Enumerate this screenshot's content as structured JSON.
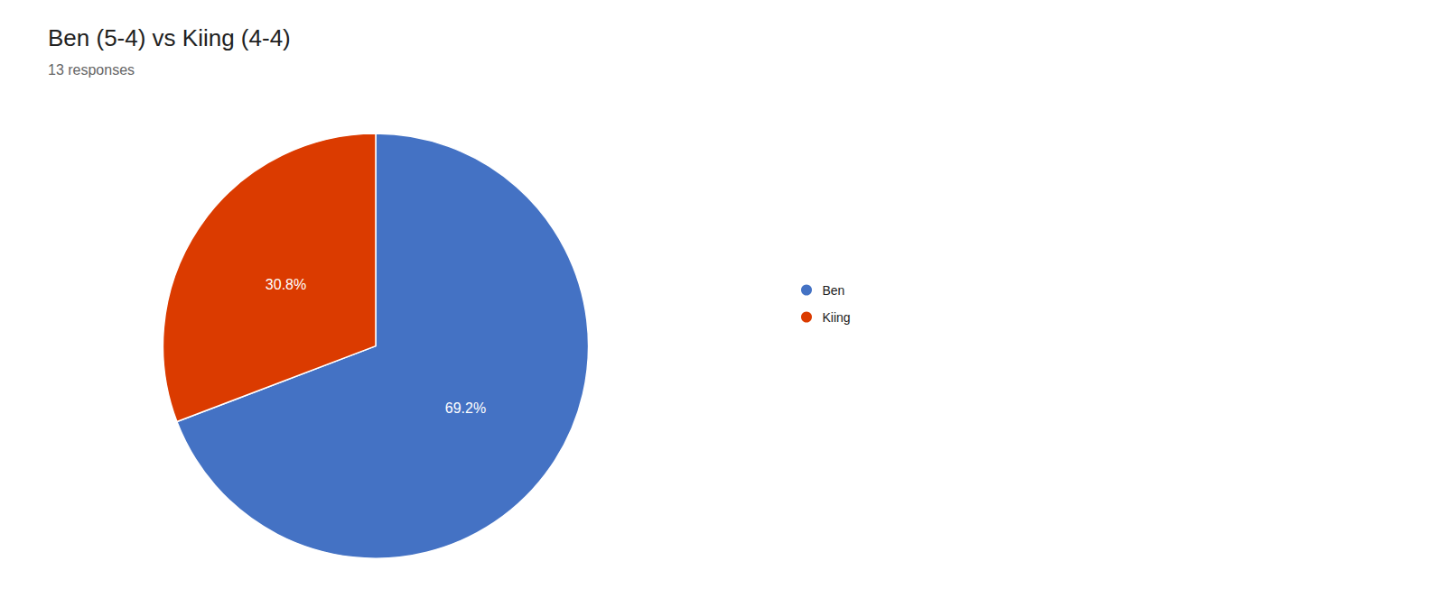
{
  "chart_data": {
    "type": "pie",
    "title": "Ben (5-4) vs Kiing (4-4)",
    "subtitle": "13 responses",
    "categories": [
      "Ben",
      "Kiing"
    ],
    "values": [
      69.2,
      30.8
    ],
    "value_labels": [
      "69.2%",
      "30.8%"
    ],
    "colors": [
      "#4472c4",
      "#db3b00"
    ],
    "data_labels": true,
    "legend": "right"
  }
}
